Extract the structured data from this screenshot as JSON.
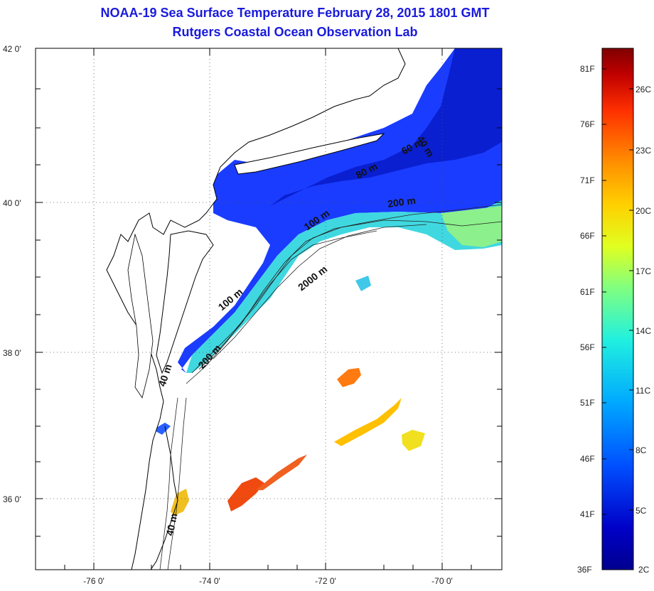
{
  "title": {
    "line1": "NOAA-19 Sea Surface Temperature February 28, 2015 1801 GMT",
    "line2": "Rutgers Coastal Ocean Observation Lab"
  },
  "map": {
    "lon_range": [
      -77.0,
      -69.0
    ],
    "lat_range": [
      35.0,
      42.0
    ],
    "lat_labels": [
      {
        "value": 42,
        "text": "42 0'"
      },
      {
        "value": 40,
        "text": "40 0'"
      },
      {
        "value": 38,
        "text": "38 0'"
      },
      {
        "value": 36,
        "text": "36 0'"
      }
    ],
    "lon_labels": [
      {
        "value": -76,
        "text": "-76 0'"
      },
      {
        "value": -74,
        "text": "-74 0'"
      },
      {
        "value": -72,
        "text": "-72 0'"
      },
      {
        "value": -70,
        "text": "-70 0'"
      }
    ],
    "grid": "dotted",
    "contour_labels": [
      "40 m",
      "60 m",
      "80 m",
      "100 m",
      "200 m",
      "2000 m",
      "100 m",
      "200 m",
      "40 m",
      "40 m"
    ]
  },
  "colorbar": {
    "fahrenheit_labels": [
      "81F",
      "76F",
      "71F",
      "66F",
      "61F",
      "56F",
      "51F",
      "46F",
      "41F",
      "36F"
    ],
    "celsius_labels": [
      "26C",
      "23C",
      "20C",
      "17C",
      "14C",
      "11C",
      "8C",
      "5C",
      "2C"
    ],
    "colors": [
      "#7f0000",
      "#d00000",
      "#ff4000",
      "#ff9000",
      "#ffd000",
      "#e0ff20",
      "#80ff80",
      "#20f0e0",
      "#00a0ff",
      "#0040ff",
      "#0000c0",
      "#00008f"
    ]
  }
}
